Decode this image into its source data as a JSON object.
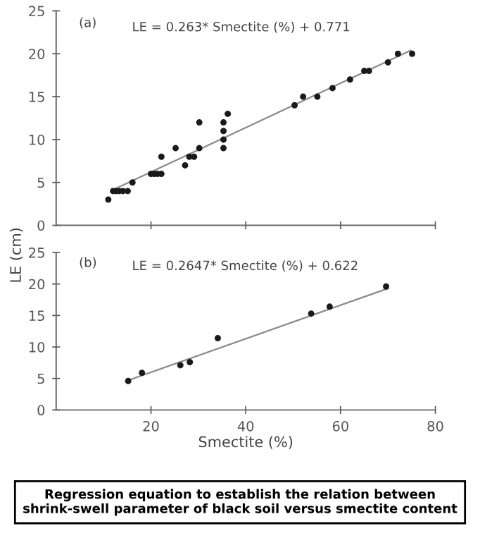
{
  "chart_data": [
    {
      "type": "scatter",
      "ylabel": "LE (cm)",
      "xlim": [
        0,
        80
      ],
      "ylim": [
        0,
        25
      ],
      "xticks": [
        20,
        40,
        60,
        80
      ],
      "yticks": [
        0,
        5,
        10,
        15,
        20,
        25
      ],
      "tick_labels": "y",
      "grid": false,
      "legend": false,
      "annotations": [
        "(a)",
        "LE = 0.263* Smectite (%) + 0.771"
      ],
      "series": [
        {
          "color": "#1a1a1a",
          "marker": "circle",
          "x": [
            11.0,
            12.0,
            12.6,
            13.3,
            14.1,
            15.1,
            16.1,
            20.0,
            20.7,
            21.4,
            22.2,
            22.2,
            25.2,
            27.2,
            28.1,
            29.1,
            30.2,
            30.2,
            35.3,
            35.3,
            35.3,
            35.3,
            36.2,
            50.3,
            52.1,
            55.1,
            58.3,
            62.0,
            65.0,
            66.0,
            70.0,
            72.1,
            75.1
          ],
          "values": [
            3,
            4,
            4,
            4,
            4,
            4,
            5,
            6,
            6,
            6,
            6,
            8,
            9,
            7,
            8,
            8,
            12,
            9,
            12,
            11,
            10,
            9,
            13,
            14,
            15,
            15,
            16,
            17,
            18,
            18,
            19,
            20,
            20
          ]
        },
        {
          "type": "line",
          "color": "#8c8c8c",
          "x": [
            12.6,
            74.8
          ],
          "values": [
            4.3,
            20.4
          ]
        }
      ]
    },
    {
      "type": "scatter",
      "xlabel": "Smectite (%)",
      "xlim": [
        0,
        80
      ],
      "ylim": [
        0,
        25
      ],
      "xticks": [
        20,
        40,
        60,
        80
      ],
      "yticks": [
        0,
        5,
        10,
        15,
        20,
        25
      ],
      "grid": false,
      "legend": false,
      "annotations": [
        "(b)",
        "LE = 0.2647* Smectite (%) + 0.622",
        "Regression equation to establish the relation between shrink-swell parameter of black soil versus smectite content"
      ],
      "series": [
        {
          "color": "#1a1a1a",
          "marker": "circle",
          "x": [
            15.2,
            18.1,
            26.2,
            28.2,
            34.1,
            53.8,
            57.7,
            69.6
          ],
          "values": [
            4.6,
            5.9,
            7.1,
            7.6,
            11.4,
            15.3,
            16.4,
            19.6
          ]
        },
        {
          "type": "line",
          "color": "#8c8c8c",
          "x": [
            15.2,
            70.0
          ],
          "values": [
            4.7,
            19.3
          ]
        }
      ]
    }
  ]
}
